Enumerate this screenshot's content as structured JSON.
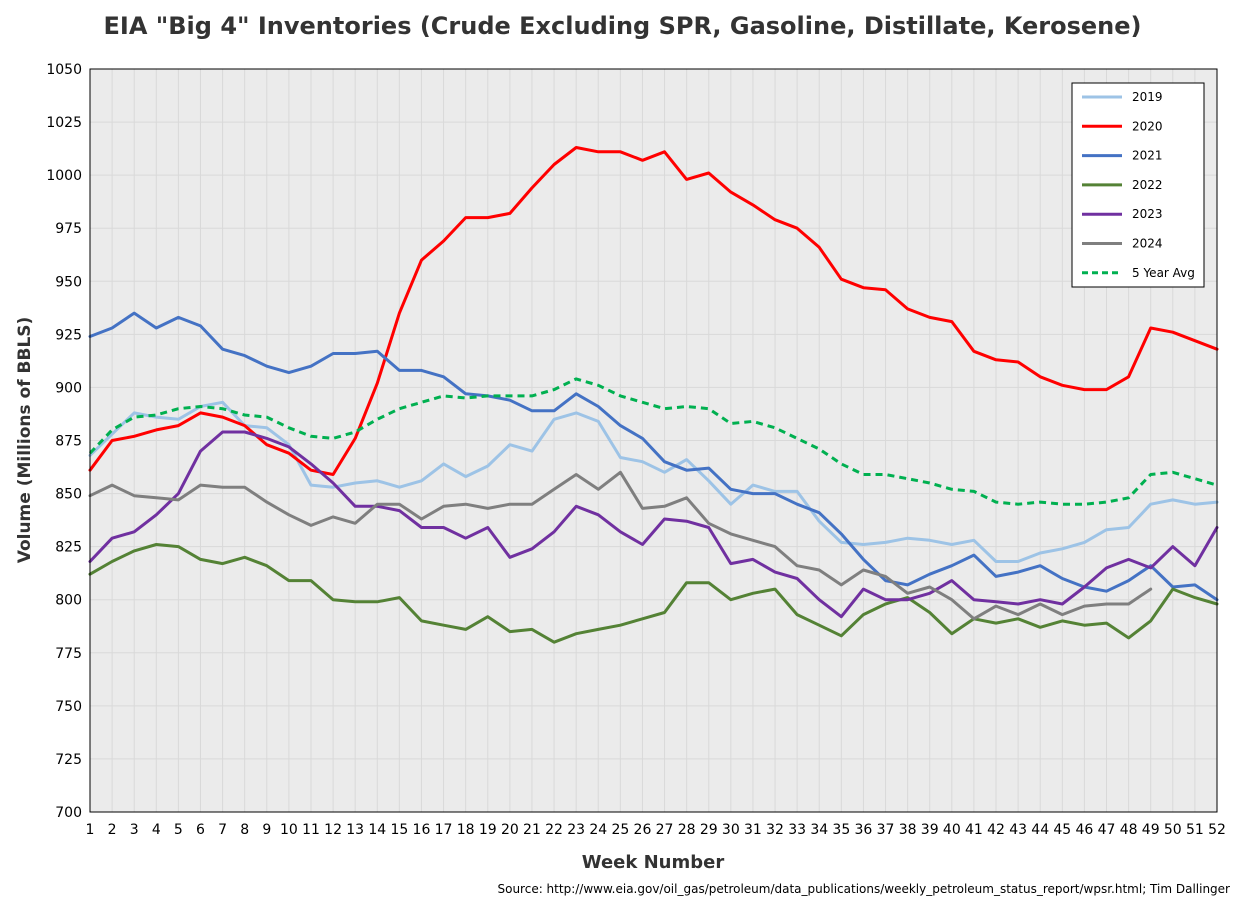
{
  "title": "EIA \"Big 4\" Inventories (Crude Excluding SPR, Gasoline, Distillate, Kerosene)",
  "source": "Source: http://www.eia.gov/oil_gas/petroleum/data_publications/weekly_petroleum_status_report/wpsr.html; Tim Dallinger",
  "chart_data": {
    "type": "line",
    "xlabel": "Week Number",
    "ylabel": "Volume (Millions of BBLS)",
    "xlim": [
      1,
      52
    ],
    "ylim": [
      700,
      1050
    ],
    "yticks": [
      700,
      725,
      750,
      775,
      800,
      825,
      850,
      875,
      900,
      925,
      950,
      975,
      1000,
      1025,
      1050
    ],
    "grid": true,
    "legend_position": "top-right",
    "x": [
      1,
      2,
      3,
      4,
      5,
      6,
      7,
      8,
      9,
      10,
      11,
      12,
      13,
      14,
      15,
      16,
      17,
      18,
      19,
      20,
      21,
      22,
      23,
      24,
      25,
      26,
      27,
      28,
      29,
      30,
      31,
      32,
      33,
      34,
      35,
      36,
      37,
      38,
      39,
      40,
      41,
      42,
      43,
      44,
      45,
      46,
      47,
      48,
      49,
      50,
      51,
      52
    ],
    "series": [
      {
        "name": "2019",
        "color": "#9dc3e6",
        "dash": false,
        "values": [
          868,
          878,
          888,
          886,
          885,
          891,
          893,
          882,
          881,
          873,
          854,
          853,
          855,
          856,
          853,
          856,
          864,
          858,
          863,
          873,
          870,
          885,
          888,
          884,
          867,
          865,
          860,
          866,
          856,
          845,
          854,
          851,
          851,
          837,
          827,
          826,
          827,
          829,
          828,
          826,
          828,
          818,
          818,
          822,
          824,
          827,
          833,
          834,
          845,
          847,
          845,
          846
        ]
      },
      {
        "name": "2020",
        "color": "#ff0000",
        "dash": false,
        "values": [
          861,
          875,
          877,
          880,
          882,
          888,
          886,
          882,
          873,
          869,
          861,
          859,
          876,
          902,
          935,
          960,
          969,
          980,
          980,
          982,
          994,
          1005,
          1013,
          1011,
          1011,
          1007,
          1011,
          998,
          1001,
          992,
          986,
          979,
          975,
          966,
          951,
          947,
          946,
          937,
          933,
          931,
          917,
          913,
          912,
          905,
          901,
          899,
          899,
          905,
          928,
          926,
          922,
          918
        ]
      },
      {
        "name": "2021",
        "color": "#4472c4",
        "dash": false,
        "values": [
          924,
          928,
          935,
          928,
          933,
          929,
          918,
          915,
          910,
          907,
          910,
          916,
          916,
          917,
          908,
          908,
          905,
          897,
          896,
          894,
          889,
          889,
          897,
          891,
          882,
          876,
          865,
          861,
          862,
          852,
          850,
          850,
          845,
          841,
          831,
          819,
          809,
          807,
          812,
          816,
          821,
          811,
          813,
          816,
          810,
          806,
          804,
          809,
          816,
          806,
          807,
          800
        ]
      },
      {
        "name": "2022",
        "color": "#548235",
        "dash": false,
        "values": [
          812,
          818,
          823,
          826,
          825,
          819,
          817,
          820,
          816,
          809,
          809,
          800,
          799,
          799,
          801,
          790,
          788,
          786,
          792,
          785,
          786,
          780,
          784,
          786,
          788,
          791,
          794,
          808,
          808,
          800,
          803,
          805,
          793,
          788,
          783,
          793,
          798,
          801,
          794,
          784,
          791,
          789,
          791,
          787,
          790,
          788,
          789,
          782,
          790,
          805,
          801,
          798
        ]
      },
      {
        "name": "2023",
        "color": "#7030a0",
        "dash": false,
        "values": [
          818,
          829,
          832,
          840,
          850,
          870,
          879,
          879,
          876,
          872,
          864,
          855,
          844,
          844,
          842,
          834,
          834,
          829,
          834,
          820,
          824,
          832,
          844,
          840,
          832,
          826,
          838,
          837,
          834,
          817,
          819,
          813,
          810,
          800,
          792,
          805,
          800,
          800,
          803,
          809,
          800,
          799,
          798,
          800,
          798,
          806,
          815,
          819,
          815,
          825,
          816,
          834
        ]
      },
      {
        "name": "2024",
        "color": "#7f7f7f",
        "dash": false,
        "values": [
          849,
          854,
          849,
          848,
          847,
          854,
          853,
          853,
          846,
          840,
          835,
          839,
          836,
          845,
          845,
          838,
          844,
          845,
          843,
          845,
          845,
          852,
          859,
          852,
          860,
          843,
          844,
          848,
          836,
          831,
          828,
          825,
          816,
          814,
          807,
          814,
          811,
          803,
          806,
          800,
          791,
          797,
          793,
          798,
          793,
          797,
          798,
          798,
          805,
          null,
          null,
          null
        ]
      },
      {
        "name": "5 Year Avg",
        "color": "#00b050",
        "dash": true,
        "values": [
          869,
          880,
          886,
          887,
          890,
          891,
          890,
          887,
          886,
          881,
          877,
          876,
          879,
          885,
          890,
          893,
          896,
          895,
          896,
          896,
          896,
          899,
          904,
          901,
          896,
          893,
          890,
          891,
          890,
          883,
          884,
          881,
          876,
          871,
          864,
          859,
          859,
          857,
          855,
          852,
          851,
          846,
          845,
          846,
          845,
          845,
          846,
          848,
          859,
          860,
          857,
          854
        ]
      }
    ]
  }
}
